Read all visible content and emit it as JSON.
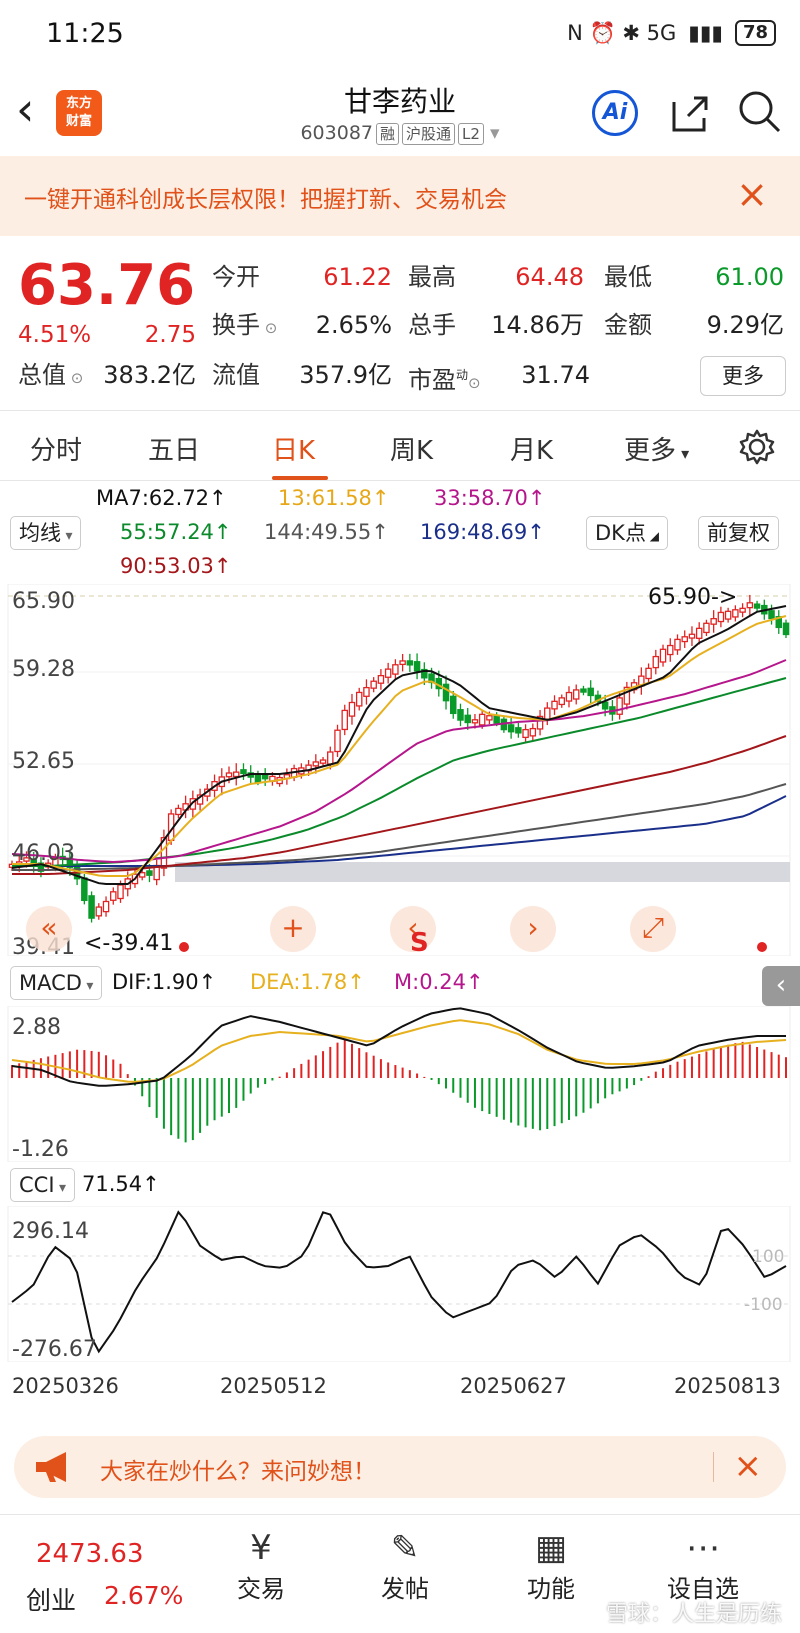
{
  "status_bar": {
    "time": "11:25",
    "icons": "N ⏰ ✱ 5G",
    "battery": "78"
  },
  "header": {
    "back": "‹",
    "logo_line1": "东方",
    "logo_line2": "财富",
    "title": "甘李药业",
    "code": "603087",
    "tags": [
      "融",
      "沪股通",
      "L2"
    ],
    "ai_label": "Ai"
  },
  "banner": {
    "text": "一键开通科创成长层权限！把握打新、交易机会",
    "close": "×"
  },
  "quote": {
    "price": "63.76",
    "change_pct": "4.51%",
    "change": "2.75",
    "open_label": "今开",
    "open": "61.22",
    "high_label": "最高",
    "high": "64.48",
    "low_label": "最低",
    "low": "61.00",
    "turnover_label": "换手",
    "turnover": "2.65%",
    "volume_label": "总手",
    "volume": "14.86万",
    "amount_label": "金额",
    "amount": "9.29亿",
    "mktcap_label": "总值",
    "mktcap": "383.2亿",
    "float_label": "流值",
    "float": "357.9亿",
    "pe_label": "市盈",
    "pe_sup": "动",
    "pe": "31.74",
    "more": "更多"
  },
  "tabs": [
    "分时",
    "五日",
    "日K",
    "周K",
    "月K",
    "更多"
  ],
  "active_tab": "日K",
  "ma": {
    "selector": "均线",
    "ma7": "MA7:62.72↑",
    "ma13": "13:61.58↑",
    "ma33": "33:58.70↑",
    "ma55": "55:57.24↑",
    "ma144": "144:49.55↑",
    "ma169": "169:48.69↑",
    "ma90": "90:53.03↑",
    "dk": "DK点",
    "adjust": "前复权"
  },
  "kline": {
    "y_labels": [
      "65.90",
      "59.28",
      "52.65",
      "46.03",
      "39.41"
    ],
    "max_note": "65.90->",
    "min_note": "<-39.41",
    "ctrl_s": "S"
  },
  "macd": {
    "selector": "MACD",
    "dif": "DIF:1.90↑",
    "dea": "DEA:1.78↑",
    "m": "M:0.24↑",
    "y_top": "2.88",
    "y_bottom": "-1.26"
  },
  "cci": {
    "selector": "CCI",
    "value": "71.54↑",
    "y_top": "296.14",
    "y_bottom": "-276.67",
    "ref_high": "100",
    "ref_low": "-100"
  },
  "x_dates": [
    "20250326",
    "20250512",
    "20250627",
    "20250813"
  ],
  "ask": {
    "text": "大家在炒什么？来问妙想！",
    "close": "×"
  },
  "bottom_nav": {
    "index_value": "2473.63",
    "index_name": "创业",
    "index_pct": "2.67%",
    "items": [
      {
        "label": "交易",
        "icon": "¥"
      },
      {
        "label": "发帖",
        "icon": "✎"
      },
      {
        "label": "功能",
        "icon": "▦"
      },
      {
        "label": "设自选",
        "icon": "⋯"
      }
    ]
  },
  "watermark": "雪球：人生是历练",
  "colors": {
    "accent": "#e0521a",
    "up": "#e02424",
    "down": "#0a9a2a"
  }
}
